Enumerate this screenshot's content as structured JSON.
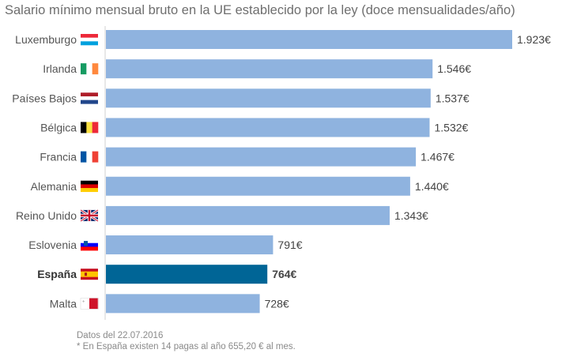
{
  "chart_data": {
    "type": "bar",
    "orientation": "horizontal",
    "title": "Salario mínimo mensual bruto en la UE establecido por la ley (doce mensualidades/año)",
    "categories": [
      "Luxemburgo",
      "Irlanda",
      "Países Bajos",
      "Bélgica",
      "Francia",
      "Alemania",
      "Reino Unido",
      "Eslovenia",
      "España",
      "Malta"
    ],
    "flags": [
      "lu",
      "ie",
      "nl",
      "be",
      "fr",
      "de",
      "gb",
      "si",
      "es",
      "mt"
    ],
    "values": [
      1923,
      1546,
      1537,
      1532,
      1467,
      1440,
      1343,
      791,
      764,
      728
    ],
    "labels": [
      "1.923€",
      "1.546€",
      "1.537€",
      "1.532€",
      "1.467€",
      "1.440€",
      "1.343€",
      "791€",
      "764€",
      "728€"
    ],
    "highlight": "España",
    "xlim": [
      0,
      1923
    ],
    "grid": false,
    "colors": {
      "bar": "#8fb3df",
      "highlight": "#006596",
      "axis": "#d0d0d0",
      "label": "#444444"
    }
  },
  "footnotes": {
    "date": "Datos del 22.07.2016",
    "note": "* En España existen 14 pagas al año 655,20 € al mes."
  }
}
